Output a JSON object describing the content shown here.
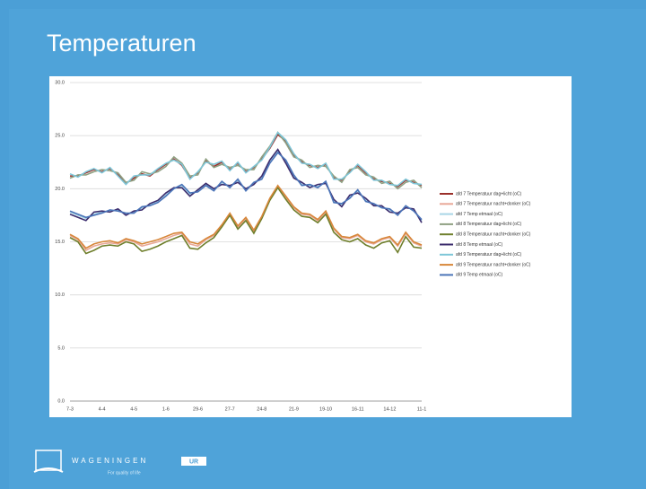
{
  "slide": {
    "title": "Temperaturen",
    "logo": {
      "name": "WAGENINGEN",
      "badge": "UR",
      "tagline": "For quality of life"
    }
  },
  "chart_data": {
    "type": "line",
    "legend": "right",
    "grid": true,
    "categories": [
      "7-3",
      null,
      null,
      null,
      "4-4",
      null,
      null,
      null,
      "4-5",
      null,
      null,
      null,
      "1-6",
      null,
      null,
      null,
      "29-6",
      null,
      null,
      null,
      "27-7",
      null,
      null,
      null,
      "24-8",
      null,
      null,
      null,
      "21-9",
      null,
      null,
      null,
      "19-10",
      null,
      null,
      null,
      "16-11",
      null,
      null,
      null,
      "14-12",
      null,
      null,
      null,
      "11-1"
    ],
    "ylim": [
      0,
      30
    ],
    "yticks": [
      {
        "value": 0,
        "label": "0.0"
      },
      {
        "value": 5,
        "label": "5.0"
      },
      {
        "value": 10,
        "label": "10.0"
      },
      {
        "value": 15,
        "label": "15.0"
      },
      {
        "value": 20,
        "label": "20.0"
      },
      {
        "value": 25,
        "label": "25.0"
      },
      {
        "value": 30,
        "label": "30.0"
      }
    ],
    "series": [
      {
        "name": "afd 7 Temperatuur dag+licht (oC)",
        "color": "#9a2f2a",
        "values": [
          21.2,
          21.2,
          21.5,
          21.8,
          21.6,
          21.9,
          21.3,
          20.5,
          21.0,
          21.4,
          21.2,
          21.8,
          22.3,
          22.8,
          22.2,
          21.0,
          21.5,
          22.6,
          22.1,
          22.5,
          21.8,
          22.4,
          21.6,
          22.0,
          22.8,
          23.8,
          25.1,
          24.5,
          23.2,
          22.5,
          22.2,
          22.0,
          22.3,
          21.0,
          20.8,
          21.6,
          22.2,
          21.5,
          20.9,
          20.7,
          20.5,
          20.2,
          20.8,
          20.6,
          20.3
        ]
      },
      {
        "name": "afd 7 Temperatuur nacht+donker (oC)",
        "color": "#e8a898",
        "values": [
          15.6,
          15.2,
          14.2,
          14.6,
          14.8,
          14.9,
          14.8,
          15.2,
          15.0,
          14.6,
          14.8,
          15.0,
          15.3,
          15.6,
          15.8,
          14.8,
          14.6,
          15.2,
          15.6,
          16.5,
          17.6,
          16.4,
          17.2,
          16.0,
          17.3,
          19.0,
          20.2,
          19.2,
          18.2,
          17.6,
          17.5,
          17.0,
          17.8,
          16.2,
          15.4,
          15.3,
          15.6,
          15.0,
          14.8,
          15.2,
          15.4,
          14.6,
          15.8,
          14.9,
          14.6
        ]
      },
      {
        "name": "afd 7 Temp etmaal (oC)",
        "color": "#a8d6e6",
        "values": [
          17.8,
          17.5,
          17.2,
          17.6,
          17.8,
          17.9,
          18.0,
          17.6,
          17.8,
          18.2,
          18.5,
          18.8,
          19.4,
          20.0,
          20.3,
          19.5,
          19.8,
          20.4,
          19.9,
          20.6,
          20.2,
          20.8,
          19.9,
          20.5,
          21.0,
          22.5,
          23.5,
          22.6,
          21.2,
          20.4,
          20.3,
          20.2,
          20.6,
          18.8,
          18.5,
          19.2,
          19.8,
          18.9,
          18.5,
          18.3,
          18.0,
          17.6,
          18.3,
          18.0,
          17.0
        ]
      },
      {
        "name": "afd 8 Temperatuur dag+licht (oC)",
        "color": "#8fa082",
        "values": [
          21.0,
          21.3,
          21.3,
          21.6,
          21.8,
          21.7,
          21.5,
          20.6,
          20.8,
          21.6,
          21.4,
          21.6,
          22.1,
          23.0,
          22.4,
          21.2,
          21.3,
          22.8,
          22.0,
          22.3,
          22.0,
          22.2,
          21.8,
          21.8,
          23.0,
          24.0,
          25.3,
          24.3,
          23.0,
          22.7,
          22.0,
          22.2,
          22.1,
          21.2,
          20.6,
          21.8,
          22.0,
          21.3,
          21.1,
          20.5,
          20.7,
          20.0,
          20.6,
          20.8,
          20.1
        ]
      },
      {
        "name": "afd 8 Temperatuur nacht+donker (oC)",
        "color": "#6f7f2c",
        "values": [
          15.4,
          15.0,
          13.9,
          14.2,
          14.6,
          14.7,
          14.6,
          15.0,
          14.8,
          14.1,
          14.3,
          14.6,
          15.0,
          15.3,
          15.6,
          14.4,
          14.3,
          14.9,
          15.4,
          16.4,
          17.5,
          16.2,
          17.0,
          15.8,
          17.2,
          18.9,
          20.1,
          19.0,
          18.0,
          17.4,
          17.3,
          16.8,
          17.6,
          15.9,
          15.2,
          15.0,
          15.3,
          14.7,
          14.4,
          14.9,
          15.1,
          14.0,
          15.5,
          14.5,
          14.4
        ]
      },
      {
        "name": "afd 8 Temp etmaal (oC)",
        "color": "#3c2d6e",
        "values": [
          17.6,
          17.3,
          17.0,
          17.8,
          17.9,
          17.8,
          18.1,
          17.5,
          17.9,
          18.0,
          18.6,
          18.9,
          19.6,
          20.1,
          20.1,
          19.3,
          19.9,
          20.5,
          20.0,
          20.4,
          20.3,
          20.6,
          20.0,
          20.4,
          21.2,
          22.7,
          23.7,
          22.4,
          21.0,
          20.6,
          20.1,
          20.4,
          20.5,
          19.0,
          18.3,
          19.4,
          19.6,
          19.1,
          18.4,
          18.4,
          17.8,
          17.7,
          18.2,
          18.1,
          16.8
        ]
      },
      {
        "name": "afd 9 Temperatuur dag+licht (oC)",
        "color": "#7ec6d8",
        "values": [
          21.4,
          21.1,
          21.6,
          21.9,
          21.5,
          22.0,
          21.2,
          20.4,
          21.2,
          21.3,
          21.3,
          21.9,
          22.4,
          22.7,
          22.3,
          20.9,
          21.6,
          22.5,
          22.3,
          22.6,
          21.7,
          22.5,
          21.5,
          22.1,
          22.7,
          23.9,
          25.3,
          24.6,
          23.3,
          22.4,
          22.3,
          21.9,
          22.4,
          20.9,
          20.9,
          21.5,
          22.3,
          21.6,
          20.8,
          20.8,
          20.4,
          20.3,
          20.9,
          20.5,
          20.4
        ]
      },
      {
        "name": "afd 9 Temperatuur nacht+donker (oC)",
        "color": "#d7873a",
        "values": [
          15.7,
          15.3,
          14.4,
          14.8,
          15.0,
          15.1,
          14.9,
          15.3,
          15.1,
          14.8,
          15.0,
          15.2,
          15.5,
          15.8,
          15.9,
          15.0,
          14.8,
          15.3,
          15.7,
          16.6,
          17.7,
          16.5,
          17.3,
          16.1,
          17.4,
          19.1,
          20.3,
          19.3,
          18.3,
          17.7,
          17.6,
          17.1,
          17.9,
          16.3,
          15.5,
          15.4,
          15.7,
          15.1,
          14.9,
          15.3,
          15.5,
          14.7,
          15.9,
          15.0,
          14.7
        ]
      },
      {
        "name": "afd 9 Temp etmaal (oC)",
        "color": "#4b74b8",
        "values": [
          17.9,
          17.6,
          17.3,
          17.5,
          17.7,
          18.0,
          17.9,
          17.7,
          17.7,
          18.3,
          18.4,
          18.7,
          19.3,
          20.0,
          20.4,
          19.6,
          19.7,
          20.3,
          19.8,
          20.7,
          20.1,
          20.9,
          19.8,
          20.6,
          20.9,
          22.4,
          23.4,
          22.7,
          21.3,
          20.3,
          20.4,
          20.1,
          20.7,
          18.7,
          18.6,
          19.1,
          19.9,
          18.8,
          18.6,
          18.2,
          18.1,
          17.5,
          18.4,
          17.9,
          17.1
        ]
      }
    ]
  }
}
